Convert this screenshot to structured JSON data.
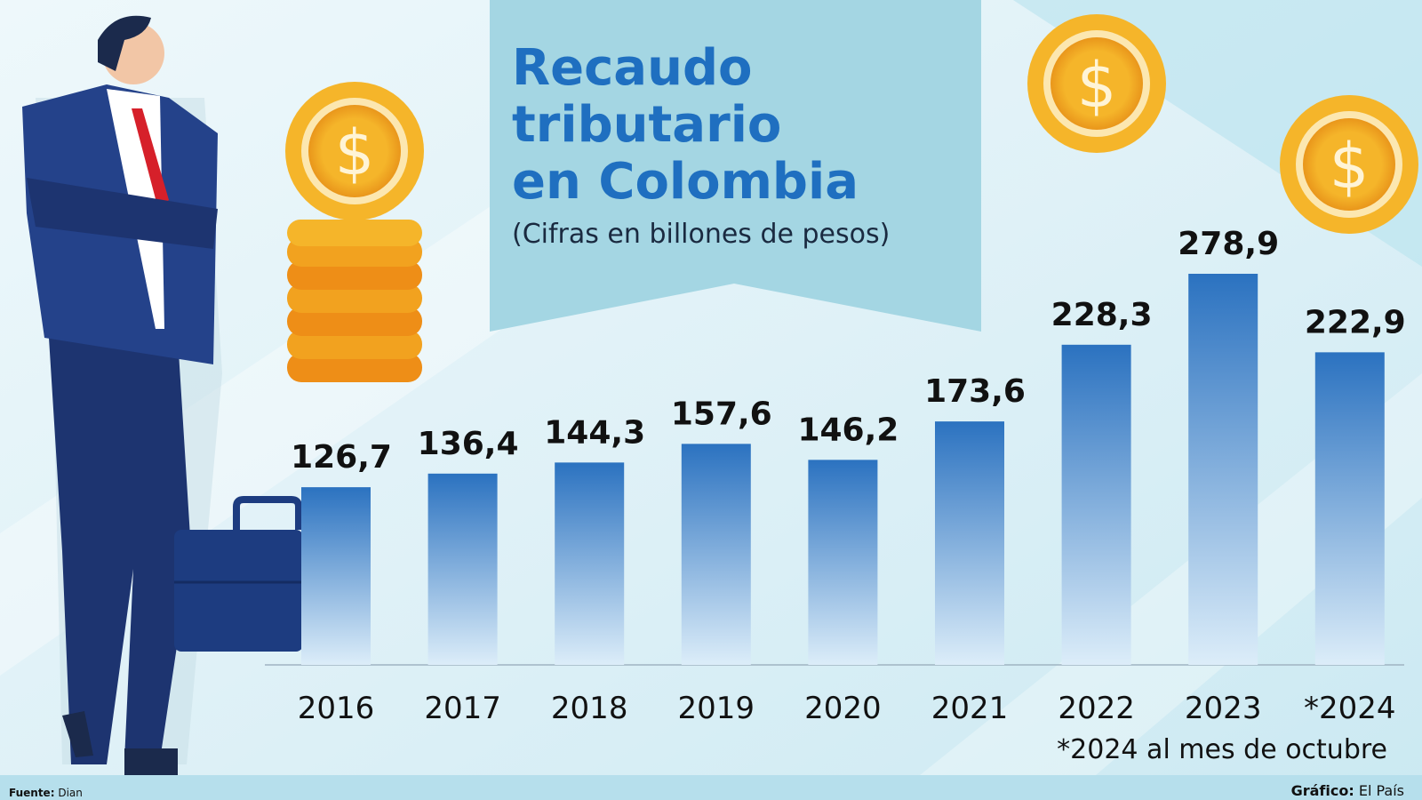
{
  "chart_data": {
    "type": "bar",
    "title": "Recaudo tributario en Colombia",
    "subtitle": "(Cifras en billones de pesos)",
    "categories": [
      "2016",
      "2017",
      "2018",
      "2019",
      "2020",
      "2021",
      "2022",
      "2023",
      "*2024"
    ],
    "values": [
      126.7,
      136.4,
      144.3,
      157.6,
      146.2,
      173.6,
      228.3,
      278.9,
      222.9
    ],
    "value_labels": [
      "126,7",
      "136,4",
      "144,3",
      "157,6",
      "146,2",
      "173,6",
      "228,3",
      "278,9",
      "222,9"
    ],
    "color": "#2b72c0",
    "note": "*2024 al mes de octubre",
    "source_label": "Fuente:",
    "source": "Dian",
    "credit_label": "Gráfico:",
    "credit": "El País"
  }
}
